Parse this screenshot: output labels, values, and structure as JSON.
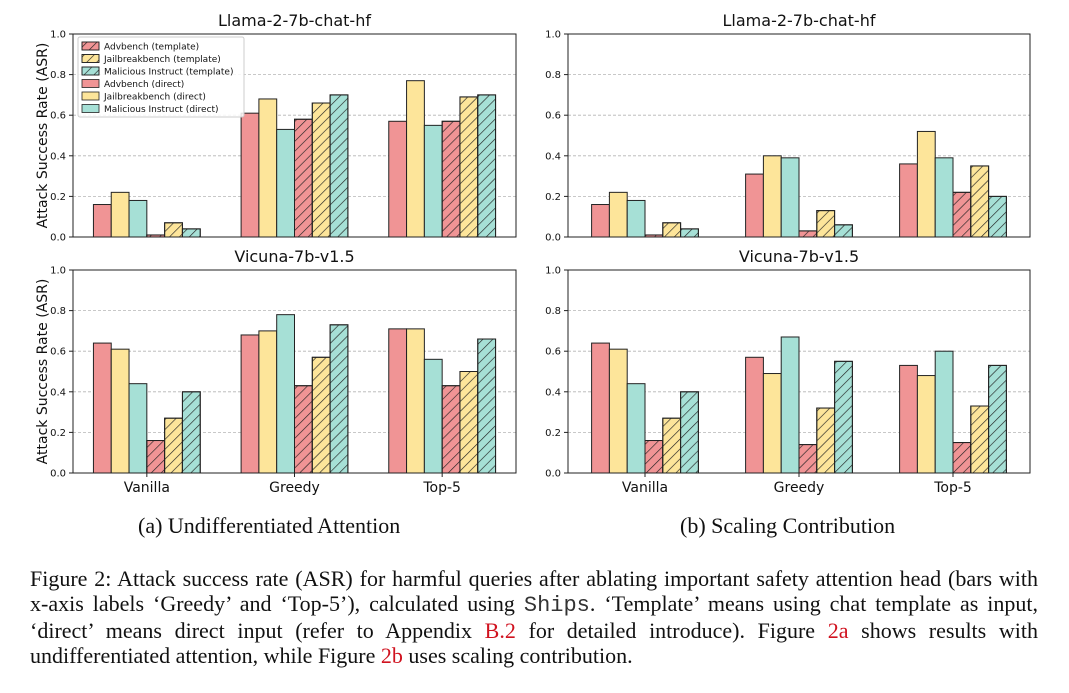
{
  "colors": {
    "advbench": "#f09495",
    "jailbreakbench": "#fde59a",
    "malicious": "#a6e0d6",
    "edge": "#222222",
    "grid": "#b5b5b5"
  },
  "chart_data": [
    {
      "id": "a-top",
      "type": "bar",
      "title": "Llama-2-7b-chat-hf",
      "ylabel": "Attack Success Rate (ASR)",
      "ylim": [
        0,
        1.0
      ],
      "yticks": [
        "0.0",
        "0.2",
        "0.4",
        "0.6",
        "0.8",
        "1.0"
      ],
      "categories": [
        "Vanilla",
        "Greedy",
        "Top-5"
      ],
      "show_xticks": false,
      "grid": "y-dashed",
      "legend": "top-left",
      "series": [
        {
          "name": "Advbench (template)",
          "values": [
            0.01,
            0.58,
            0.57
          ],
          "hatch": true,
          "color": "advbench"
        },
        {
          "name": "Jailbreakbench (template)",
          "values": [
            0.07,
            0.66,
            0.69
          ],
          "hatch": true,
          "color": "jailbreakbench"
        },
        {
          "name": "Malicious Instruct (template)",
          "values": [
            0.04,
            0.7,
            0.7
          ],
          "hatch": true,
          "color": "malicious"
        },
        {
          "name": "Advbench (direct)",
          "values": [
            0.16,
            0.61,
            0.57
          ],
          "hatch": false,
          "color": "advbench"
        },
        {
          "name": "Jailbreakbench (direct)",
          "values": [
            0.22,
            0.68,
            0.77
          ],
          "hatch": false,
          "color": "jailbreakbench"
        },
        {
          "name": "Malicious Instruct (direct)",
          "values": [
            0.18,
            0.53,
            0.55
          ],
          "hatch": false,
          "color": "malicious"
        }
      ]
    },
    {
      "id": "b-top",
      "type": "bar",
      "title": "Llama-2-7b-chat-hf",
      "ylabel": "",
      "ylim": [
        0,
        1.0
      ],
      "yticks": [
        "0.0",
        "0.2",
        "0.4",
        "0.6",
        "0.8",
        "1.0"
      ],
      "categories": [
        "Vanilla",
        "Greedy",
        "Top-5"
      ],
      "show_xticks": false,
      "grid": "y-dashed",
      "series": [
        {
          "values": [
            0.01,
            0.03,
            0.22
          ],
          "hatch": true,
          "color": "advbench"
        },
        {
          "values": [
            0.07,
            0.13,
            0.35
          ],
          "hatch": true,
          "color": "jailbreakbench"
        },
        {
          "values": [
            0.04,
            0.06,
            0.2
          ],
          "hatch": true,
          "color": "malicious"
        },
        {
          "values": [
            0.16,
            0.31,
            0.36
          ],
          "hatch": false,
          "color": "advbench"
        },
        {
          "values": [
            0.22,
            0.4,
            0.52
          ],
          "hatch": false,
          "color": "jailbreakbench"
        },
        {
          "values": [
            0.18,
            0.39,
            0.39
          ],
          "hatch": false,
          "color": "malicious"
        }
      ]
    },
    {
      "id": "a-bottom",
      "type": "bar",
      "title": "Vicuna-7b-v1.5",
      "ylabel": "Attack Success Rate (ASR)",
      "ylim": [
        0,
        1.0
      ],
      "yticks": [
        "0.0",
        "0.2",
        "0.4",
        "0.6",
        "0.8",
        "1.0"
      ],
      "categories": [
        "Vanilla",
        "Greedy",
        "Top-5"
      ],
      "show_xticks": true,
      "grid": "y-dashed",
      "series": [
        {
          "values": [
            0.16,
            0.43,
            0.43
          ],
          "hatch": true,
          "color": "advbench"
        },
        {
          "values": [
            0.27,
            0.57,
            0.5
          ],
          "hatch": true,
          "color": "jailbreakbench"
        },
        {
          "values": [
            0.4,
            0.73,
            0.66
          ],
          "hatch": true,
          "color": "malicious"
        },
        {
          "values": [
            0.64,
            0.68,
            0.71
          ],
          "hatch": false,
          "color": "advbench"
        },
        {
          "values": [
            0.61,
            0.7,
            0.71
          ],
          "hatch": false,
          "color": "jailbreakbench"
        },
        {
          "values": [
            0.44,
            0.78,
            0.56
          ],
          "hatch": false,
          "color": "malicious"
        }
      ]
    },
    {
      "id": "b-bottom",
      "type": "bar",
      "title": "Vicuna-7b-v1.5",
      "ylabel": "",
      "ylim": [
        0,
        1.0
      ],
      "yticks": [
        "0.0",
        "0.2",
        "0.4",
        "0.6",
        "0.8",
        "1.0"
      ],
      "categories": [
        "Vanilla",
        "Greedy",
        "Top-5"
      ],
      "show_xticks": true,
      "grid": "y-dashed",
      "series": [
        {
          "values": [
            0.16,
            0.14,
            0.15
          ],
          "hatch": true,
          "color": "advbench"
        },
        {
          "values": [
            0.27,
            0.32,
            0.33
          ],
          "hatch": true,
          "color": "jailbreakbench"
        },
        {
          "values": [
            0.4,
            0.55,
            0.53
          ],
          "hatch": true,
          "color": "malicious"
        },
        {
          "values": [
            0.64,
            0.57,
            0.53
          ],
          "hatch": false,
          "color": "advbench"
        },
        {
          "values": [
            0.61,
            0.49,
            0.48
          ],
          "hatch": false,
          "color": "jailbreakbench"
        },
        {
          "values": [
            0.44,
            0.67,
            0.6
          ],
          "hatch": false,
          "color": "malicious"
        }
      ]
    }
  ],
  "subcaptions": {
    "a": "(a) Undifferentiated Attention",
    "b": "(b) Scaling Contribution"
  },
  "caption": {
    "p1": "Figure 2: Attack success rate (ASR) for harmful queries after ablating important safety attention head (bars with x-axis labels ‘Greedy’ and ‘Top-5’), calculated using ",
    "mono": "Ships",
    "p2": ". ‘Template’ means using chat template as input, ‘direct’ means direct input (refer to Appendix ",
    "ref1": "B.2",
    "p3": " for detailed introduce). Figure ",
    "ref2": "2a",
    "p4": " shows results with undifferentiated attention, while Figure ",
    "ref3": "2b",
    "p5": " uses scaling contribution."
  }
}
